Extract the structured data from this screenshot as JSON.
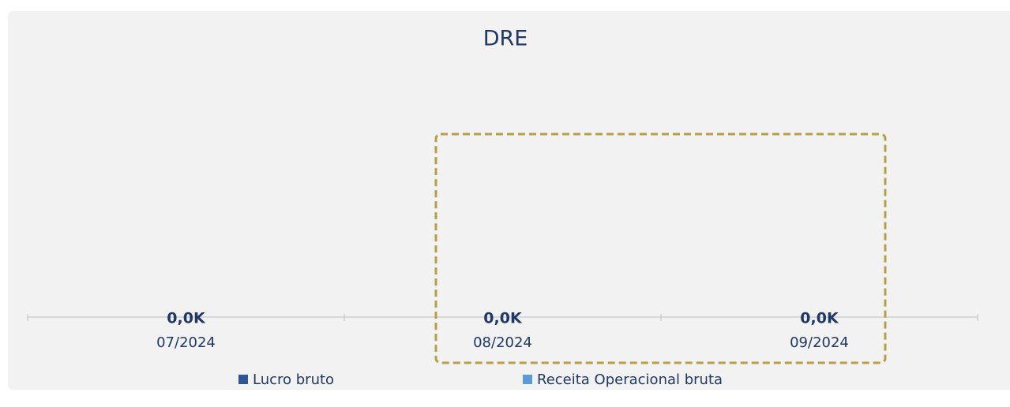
{
  "chart_data": {
    "type": "bar",
    "title": "DRE",
    "categories": [
      "07/2024",
      "08/2024",
      "09/2024"
    ],
    "series": [
      {
        "name": "Lucro bruto",
        "color": "#2f5597",
        "values": [
          0,
          0,
          0
        ],
        "value_labels": [
          "0,0K",
          "0,0K",
          "0,0K"
        ]
      },
      {
        "name": "Receita Operacional bruta",
        "color": "#5b9bd5",
        "values": [
          0,
          0,
          0
        ]
      }
    ],
    "legend": "bottom"
  }
}
